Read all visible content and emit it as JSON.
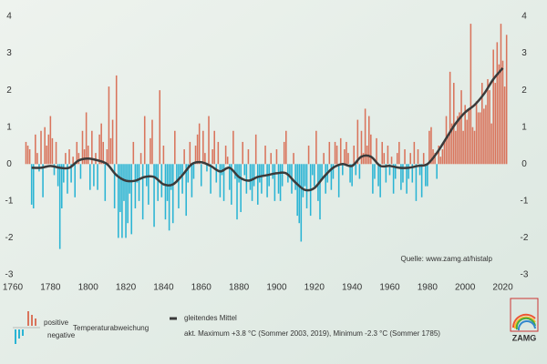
{
  "chart_data": {
    "type": "bar",
    "source": "Quelle: www.zamg.at/histalp",
    "xlim": [
      1760,
      2027
    ],
    "xticks": [
      1760,
      1780,
      1800,
      1820,
      1840,
      1860,
      1880,
      1900,
      1920,
      1940,
      1960,
      1980,
      2000,
      2020
    ],
    "ylim": [
      -3,
      4
    ],
    "yticks": [
      -3,
      -2,
      -1,
      0,
      1,
      2,
      3,
      4
    ],
    "grid": false,
    "positive_color": "#d9745c",
    "negative_color": "#2ab4d4",
    "legend_positive": "positive",
    "legend_negative": "negative",
    "series": [
      {
        "name": "Temperaturabweichung",
        "x": [
          1767,
          1768,
          1769,
          1770,
          1771,
          1772,
          1773,
          1774,
          1775,
          1776,
          1777,
          1778,
          1779,
          1780,
          1781,
          1782,
          1783,
          1784,
          1785,
          1786,
          1787,
          1788,
          1789,
          1790,
          1791,
          1792,
          1793,
          1794,
          1795,
          1796,
          1797,
          1798,
          1799,
          1800,
          1801,
          1802,
          1803,
          1804,
          1805,
          1806,
          1807,
          1808,
          1809,
          1810,
          1811,
          1812,
          1813,
          1814,
          1815,
          1816,
          1817,
          1818,
          1819,
          1820,
          1821,
          1822,
          1823,
          1824,
          1825,
          1826,
          1827,
          1828,
          1829,
          1830,
          1831,
          1832,
          1833,
          1834,
          1835,
          1836,
          1837,
          1838,
          1839,
          1840,
          1841,
          1842,
          1843,
          1844,
          1845,
          1846,
          1847,
          1848,
          1849,
          1850,
          1851,
          1852,
          1853,
          1854,
          1855,
          1856,
          1857,
          1858,
          1859,
          1860,
          1861,
          1862,
          1863,
          1864,
          1865,
          1866,
          1867,
          1868,
          1869,
          1870,
          1871,
          1872,
          1873,
          1874,
          1875,
          1876,
          1877,
          1878,
          1879,
          1880,
          1881,
          1882,
          1883,
          1884,
          1885,
          1886,
          1887,
          1888,
          1889,
          1890,
          1891,
          1892,
          1893,
          1894,
          1895,
          1896,
          1897,
          1898,
          1899,
          1900,
          1901,
          1902,
          1903,
          1904,
          1905,
          1906,
          1907,
          1908,
          1909,
          1910,
          1911,
          1912,
          1913,
          1914,
          1915,
          1916,
          1917,
          1918,
          1919,
          1920,
          1921,
          1922,
          1923,
          1924,
          1925,
          1926,
          1927,
          1928,
          1929,
          1930,
          1931,
          1932,
          1933,
          1934,
          1935,
          1936,
          1937,
          1938,
          1939,
          1940,
          1941,
          1942,
          1943,
          1944,
          1945,
          1946,
          1947,
          1948,
          1949,
          1950,
          1951,
          1952,
          1953,
          1954,
          1955,
          1956,
          1957,
          1958,
          1959,
          1960,
          1961,
          1962,
          1963,
          1964,
          1965,
          1966,
          1967,
          1968,
          1969,
          1970,
          1971,
          1972,
          1973,
          1974,
          1975,
          1976,
          1977,
          1978,
          1979,
          1980,
          1981,
          1982,
          1983,
          1984,
          1985,
          1986,
          1987,
          1988,
          1989,
          1990,
          1991,
          1992,
          1993,
          1994,
          1995,
          1996,
          1997,
          1998,
          1999,
          2000,
          2001,
          2002,
          2003,
          2004,
          2005,
          2006,
          2007,
          2008,
          2009,
          2010,
          2011,
          2012,
          2013,
          2014,
          2015,
          2016,
          2017,
          2018,
          2019,
          2020,
          2021,
          2022
        ],
        "values": [
          0.6,
          0.5,
          0.4,
          -1.1,
          -1.2,
          0.8,
          0.3,
          -0.2,
          0.9,
          -0.9,
          1.0,
          0.5,
          0.8,
          1.3,
          0.7,
          -0.3,
          0.6,
          -0.6,
          -2.3,
          -1.2,
          -0.5,
          0.3,
          -0.8,
          0.4,
          -0.5,
          0.2,
          -0.9,
          0.6,
          0.3,
          -0.4,
          0.9,
          0.4,
          1.4,
          0.5,
          -0.7,
          0.9,
          -0.6,
          0.3,
          -0.7,
          0.8,
          1.1,
          0.6,
          -1.0,
          0.4,
          2.1,
          0.7,
          1.2,
          -1.2,
          2.4,
          -2.0,
          -1.3,
          -2.0,
          -1.0,
          -2.0,
          -1.6,
          -0.8,
          -1.9,
          0.6,
          -1.2,
          -0.5,
          -1.0,
          0.3,
          -1.5,
          1.3,
          -0.6,
          -1.1,
          0.7,
          1.2,
          -1.7,
          -0.4,
          -1.0,
          2.0,
          -0.9,
          0.5,
          -1.5,
          -1.0,
          -1.8,
          -0.7,
          -1.6,
          0.9,
          -0.5,
          -1.2,
          -0.3,
          -0.8,
          0.4,
          -1.4,
          -0.5,
          0.6,
          -0.9,
          -0.4,
          0.5,
          0.8,
          1.1,
          -0.6,
          0.9,
          0.3,
          -0.2,
          1.3,
          -0.8,
          0.4,
          0.9,
          -0.5,
          0.6,
          -0.9,
          -0.3,
          -1.0,
          0.5,
          0.2,
          -0.7,
          -1.1,
          0.9,
          -0.4,
          -1.5,
          -0.5,
          -1.3,
          0.6,
          -0.3,
          -0.8,
          0.4,
          -0.7,
          -1.0,
          -0.6,
          0.8,
          -1.1,
          -0.5,
          -0.8,
          -0.3,
          0.5,
          -0.9,
          -0.6,
          0.3,
          -0.4,
          -1.0,
          0.4,
          -0.8,
          -1.0,
          -0.6,
          0.6,
          0.9,
          -0.5,
          -0.3,
          -0.8,
          0.3,
          -0.7,
          -1.4,
          -1.6,
          -2.1,
          -0.9,
          -0.6,
          -1.2,
          0.5,
          -1.4,
          -0.3,
          -0.6,
          0.9,
          -1.0,
          -1.5,
          -0.4,
          0.3,
          -0.8,
          -0.5,
          0.6,
          -0.7,
          -0.4,
          0.6,
          0.5,
          -0.9,
          0.7,
          -0.3,
          0.4,
          0.6,
          0.3,
          -0.5,
          -0.6,
          0.5,
          -0.3,
          1.2,
          -0.4,
          0.9,
          0.3,
          1.5,
          0.5,
          1.3,
          0.8,
          -0.8,
          -0.4,
          0.7,
          -0.6,
          -0.9,
          0.6,
          0.3,
          -0.5,
          0.5,
          -0.3,
          0.2,
          -0.8,
          -0.4,
          0.3,
          0.6,
          -0.7,
          -0.5,
          0.4,
          -0.8,
          -0.4,
          0.3,
          -0.5,
          0.6,
          -1.0,
          0.4,
          -0.3,
          -0.9,
          0.3,
          -0.6,
          -0.6,
          0.9,
          1.0,
          0.4,
          0.3,
          -0.4,
          0.5,
          0.2,
          0.4,
          0.6,
          1.3,
          0.8,
          2.5,
          1.1,
          2.2,
          0.9,
          1.3,
          1.4,
          2.0,
          0.9,
          1.6,
          1.2,
          1.5,
          3.8,
          1.0,
          0.9,
          1.7,
          1.4,
          1.4,
          2.2,
          1.5,
          1.6,
          2.3,
          2.0,
          1.1,
          3.1,
          2.2,
          3.3,
          2.7,
          3.8,
          2.8,
          2.1,
          3.5
        ]
      }
    ],
    "trend": {
      "name": "gleitendes Mittel",
      "color": "#3a3a3a",
      "x": [
        1770,
        1775,
        1780,
        1785,
        1790,
        1795,
        1800,
        1805,
        1810,
        1815,
        1820,
        1825,
        1830,
        1835,
        1840,
        1845,
        1850,
        1855,
        1860,
        1865,
        1870,
        1875,
        1880,
        1885,
        1890,
        1895,
        1900,
        1905,
        1910,
        1915,
        1920,
        1925,
        1930,
        1935,
        1940,
        1945,
        1950,
        1955,
        1960,
        1965,
        1970,
        1975,
        1980,
        1985,
        1990,
        1995,
        2000,
        2005,
        2010,
        2015,
        2020
      ],
      "values": [
        -0.1,
        -0.1,
        -0.05,
        -0.1,
        -0.1,
        0.1,
        0.15,
        0.1,
        0.0,
        -0.3,
        -0.45,
        -0.45,
        -0.35,
        -0.35,
        -0.55,
        -0.55,
        -0.3,
        0.0,
        0.05,
        -0.05,
        -0.2,
        -0.1,
        -0.35,
        -0.45,
        -0.35,
        -0.3,
        -0.25,
        -0.25,
        -0.5,
        -0.7,
        -0.65,
        -0.35,
        -0.1,
        0.0,
        -0.05,
        0.2,
        0.2,
        -0.05,
        -0.05,
        -0.1,
        -0.1,
        -0.05,
        0.0,
        0.3,
        0.7,
        1.1,
        1.4,
        1.6,
        1.9,
        2.3,
        2.6
      ]
    },
    "note": "akt. Maximum +3.8 °C (Sommer 2003, 2019), Minimum -2.3 °C (Sommer 1785)",
    "logo": "ZAMG"
  }
}
